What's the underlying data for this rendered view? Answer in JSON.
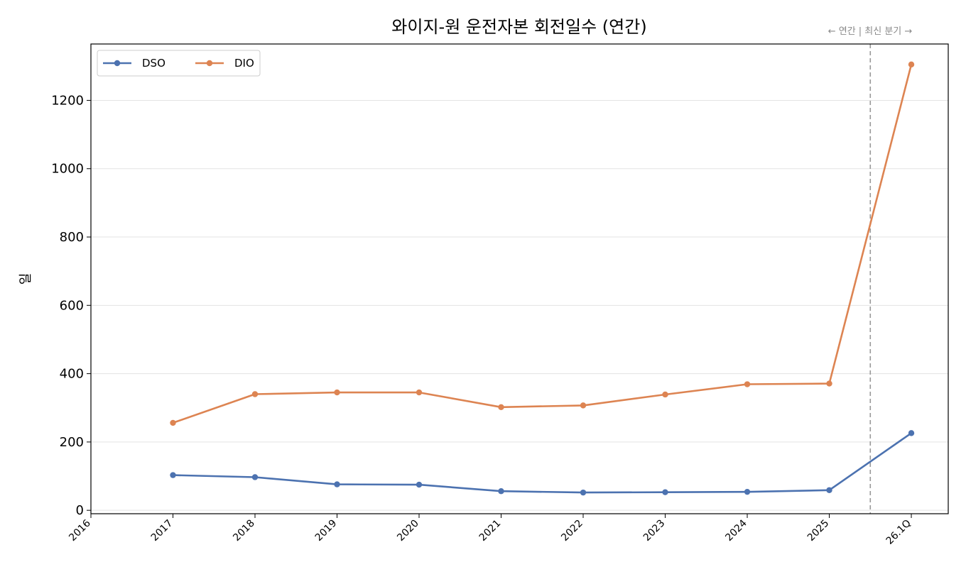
{
  "chart_data": {
    "type": "line",
    "title": "와이지-원 운전자본 회전일수 (연간)",
    "ylabel": "일",
    "xlabel": "",
    "annotation": "← 연간 | 최신 분기 →",
    "ylim": [
      -10,
      1365
    ],
    "yticks": [
      0,
      200,
      400,
      600,
      800,
      1000,
      1200
    ],
    "x_ticks": [
      "2016",
      "2017",
      "2018",
      "2019",
      "2020",
      "2021",
      "2022",
      "2023",
      "2024",
      "2025",
      "26.1Q"
    ],
    "x_start": "2016",
    "x_end_index": 10.45,
    "divider_index": 9.5,
    "grid": "y",
    "legend_position": "top-left",
    "series": [
      {
        "name": "DSO",
        "color": "#4c72b0",
        "x": [
          "2017",
          "2018",
          "2019",
          "2020",
          "2021",
          "2022",
          "2023",
          "2024",
          "2025",
          "26.1Q"
        ],
        "values": [
          103,
          97,
          76,
          75,
          56,
          52,
          53,
          54,
          59,
          226
        ]
      },
      {
        "name": "DIO",
        "color": "#dd8452",
        "x": [
          "2017",
          "2018",
          "2019",
          "2020",
          "2021",
          "2022",
          "2023",
          "2024",
          "2025",
          "26.1Q"
        ],
        "values": [
          256,
          340,
          345,
          345,
          302,
          307,
          339,
          369,
          371,
          1305
        ]
      }
    ]
  }
}
